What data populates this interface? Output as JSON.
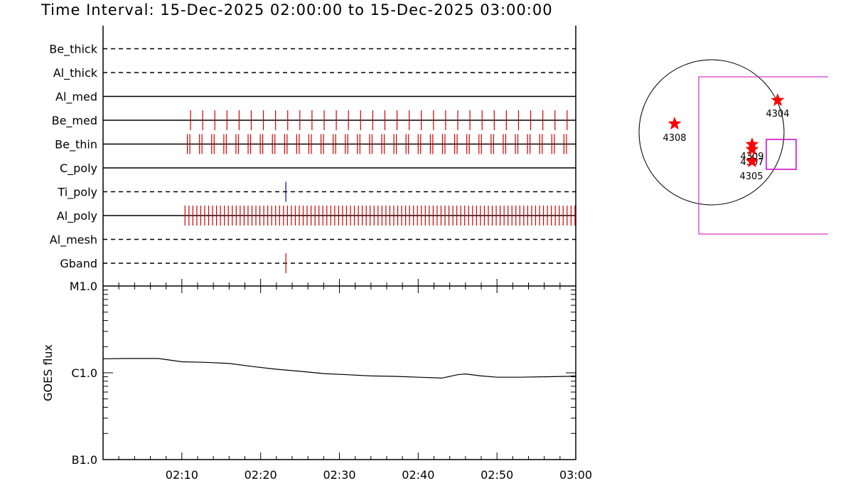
{
  "header": {
    "title": "Time Interval: 15-Dec-2025 02:00:00 to 15-Dec-2025 03:00:00"
  },
  "colors": {
    "tick_red": "#cc0000",
    "tick_blue": "#0000aa",
    "box_magenta": "#cc00cc",
    "star_red": "#ff0000"
  },
  "chart_data": [
    {
      "type": "table",
      "rows": [
        {
          "name": "Be_thick",
          "style": "dashed",
          "ticks": [],
          "color": "#cc0000"
        },
        {
          "name": "Al_thick",
          "style": "dashed",
          "ticks": [],
          "color": "#cc0000"
        },
        {
          "name": "Al_med",
          "style": "solid",
          "ticks": [],
          "color": "#cc0000"
        },
        {
          "name": "Be_med",
          "style": "solid",
          "color": "#cc0000",
          "tick_range": [
            11.1,
            58.9
          ],
          "tick_count": 32,
          "ticks": []
        },
        {
          "name": "Be_thin",
          "style": "solid",
          "color": "#cc0000",
          "tick_range": [
            10.7,
            58.5
          ],
          "tick_count": 32,
          "paired": true,
          "ticks": []
        },
        {
          "name": "C_poly",
          "style": "solid",
          "ticks": [],
          "color": "#cc0000"
        },
        {
          "name": "Ti_poly",
          "style": "dashed",
          "ticks": [
            23.2
          ],
          "color": "#0000aa"
        },
        {
          "name": "Al_poly",
          "style": "solid",
          "color": "#cc0000",
          "tick_range": [
            10.4,
            59.9
          ],
          "tick_count": 100,
          "ticks": []
        },
        {
          "name": "Al_mesh",
          "style": "dashed",
          "ticks": [],
          "color": "#cc0000"
        },
        {
          "name": "Gband",
          "style": "dashed",
          "ticks": [
            23.2
          ],
          "color": "#cc0000"
        }
      ]
    },
    {
      "type": "line",
      "ylabel": "GOES flux",
      "yscale": "log",
      "yticks": [
        "B1.0",
        "C1.0",
        "M1.0"
      ],
      "ylim": [
        1e-07,
        1e-05
      ],
      "xlim": [
        "02:00",
        "03:00"
      ],
      "xticks": [
        "02:10",
        "02:20",
        "02:30",
        "02:40",
        "02:50",
        "03:00"
      ],
      "series": [
        {
          "x": [
            0,
            3,
            7,
            10,
            13,
            16,
            19,
            22,
            25,
            28,
            31,
            34,
            37,
            40,
            43,
            45,
            46,
            48,
            50,
            53,
            56,
            59,
            60
          ],
          "y": [
            1.45e-06,
            1.46e-06,
            1.46e-06,
            1.34e-06,
            1.32e-06,
            1.28e-06,
            1.18e-06,
            1.1e-06,
            1.04e-06,
            9.8e-07,
            9.5e-07,
            9.2e-07,
            9.1e-07,
            8.9e-07,
            8.7e-07,
            9.5e-07,
            9.7e-07,
            9.2e-07,
            8.9e-07,
            8.9e-07,
            9e-07,
            9.1e-07,
            9.2e-07
          ]
        }
      ]
    },
    {
      "type": "scatter",
      "points": [
        {
          "label": "4304"
        },
        {
          "label": "4308"
        },
        {
          "label": "4309"
        },
        {
          "label": "4307"
        },
        {
          "label": "4305"
        }
      ]
    }
  ]
}
